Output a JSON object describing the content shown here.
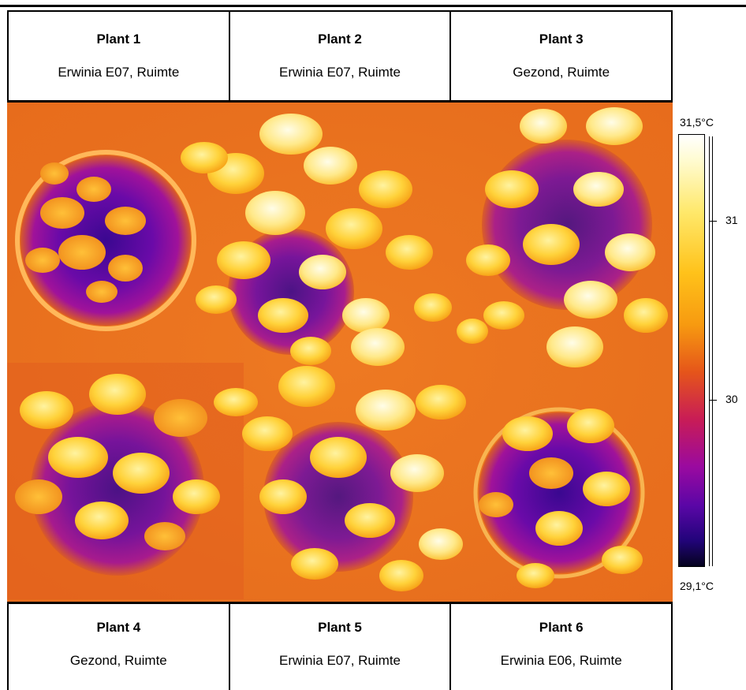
{
  "plants_top": [
    {
      "name": "Plant 1",
      "desc": "Erwinia E07, Ruimte"
    },
    {
      "name": "Plant 2",
      "desc": "Erwinia E07, Ruimte"
    },
    {
      "name": "Plant 3",
      "desc": "Gezond, Ruimte"
    }
  ],
  "plants_bottom": [
    {
      "name": "Plant 4",
      "desc": "Gezond, Ruimte"
    },
    {
      "name": "Plant 5",
      "desc": "Erwinia E07, Ruimte"
    },
    {
      "name": "Plant 6",
      "desc": "Erwinia E06, Ruimte"
    }
  ],
  "scale": {
    "max_label": "31,5°C",
    "min_label": "29,1°C",
    "tick_31": "31",
    "tick_30": "30",
    "colors": [
      "#ffffff",
      "#ffe86a",
      "#f79a10",
      "#e5551a",
      "#c81c56",
      "#9a0aa0",
      "#22047a",
      "#05031e"
    ]
  }
}
